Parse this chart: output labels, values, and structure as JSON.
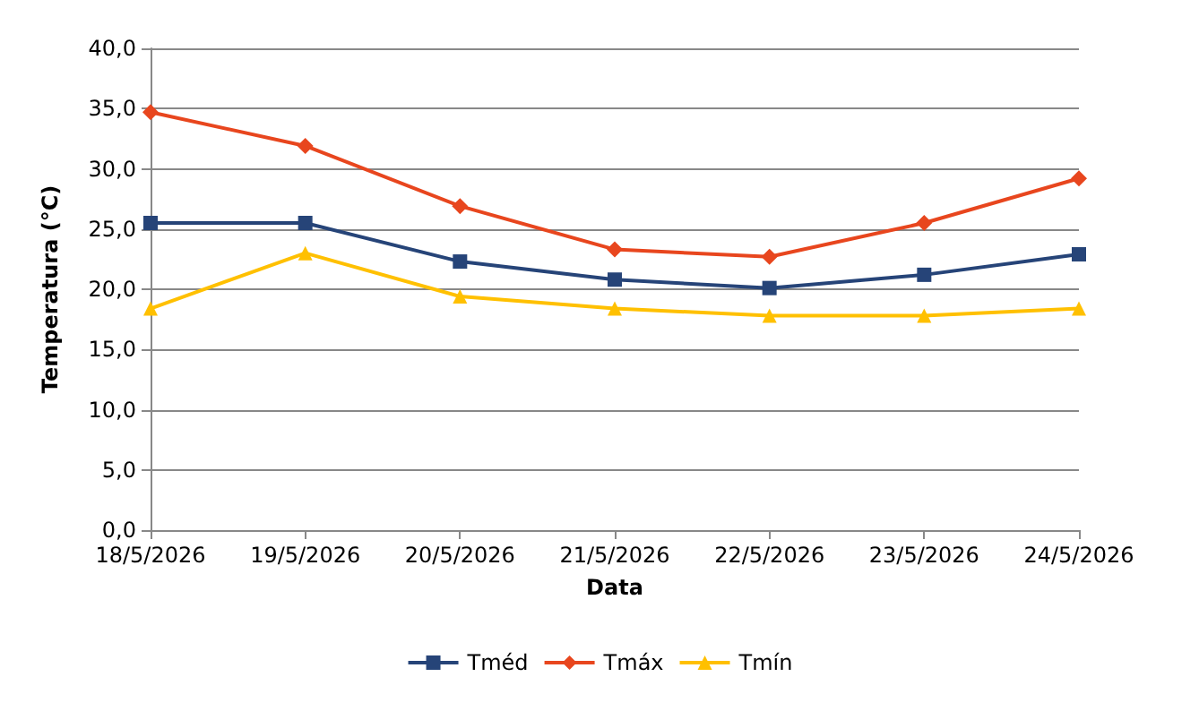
{
  "chart_data": {
    "type": "line",
    "xlabel": "Data",
    "ylabel": "Temperatura (°C)",
    "categories": [
      "18/5/2026",
      "19/5/2026",
      "20/5/2026",
      "21/5/2026",
      "22/5/2026",
      "23/5/2026",
      "24/5/2026"
    ],
    "series": [
      {
        "name": "Tméd",
        "color": "#264478",
        "marker": "square",
        "values": [
          25.5,
          25.5,
          22.3,
          20.8,
          20.1,
          21.2,
          22.9
        ]
      },
      {
        "name": "Tmáx",
        "color": "#e8461e",
        "marker": "diamond",
        "values": [
          34.7,
          31.9,
          26.9,
          23.3,
          22.7,
          25.5,
          29.2
        ]
      },
      {
        "name": "Tmín",
        "color": "#ffc000",
        "marker": "triangle",
        "values": [
          18.4,
          23.0,
          19.4,
          18.4,
          17.8,
          17.8,
          18.4
        ]
      }
    ],
    "ylim": [
      0,
      40
    ],
    "yticks": [
      {
        "value": 0,
        "label": "0,0"
      },
      {
        "value": 5,
        "label": "5,0"
      },
      {
        "value": 10,
        "label": "10,0"
      },
      {
        "value": 15,
        "label": "15,0"
      },
      {
        "value": 20,
        "label": "20,0"
      },
      {
        "value": 25,
        "label": "25,0"
      },
      {
        "value": 30,
        "label": "30,0"
      },
      {
        "value": 35,
        "label": "35,0"
      },
      {
        "value": 40,
        "label": "40,0"
      }
    ],
    "grid": "y",
    "legend": "bottom",
    "line_style": "solid"
  }
}
